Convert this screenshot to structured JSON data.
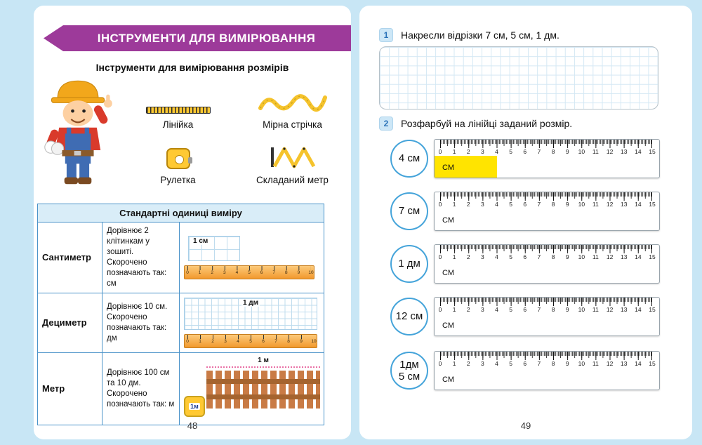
{
  "colors": {
    "background": "#c8e6f5",
    "banner": "#9d3a9a",
    "table_border": "#4a93c9",
    "highlight": "#ffe400",
    "circle_border": "#45a4da"
  },
  "left_page": {
    "banner_title": "ІНСТРУМЕНТИ ДЛЯ ВИМІРЮВАННЯ",
    "subtitle": "Інструменти для вимірювання розмірів",
    "tools": [
      {
        "label": "Лінійка",
        "icon": "ruler-icon"
      },
      {
        "label": "Мірна стрічка",
        "icon": "measuring-tape-icon"
      },
      {
        "label": "Рулетка",
        "icon": "tape-measure-icon"
      },
      {
        "label": "Складаний метр",
        "icon": "folding-meter-icon"
      }
    ],
    "table": {
      "header": "Стандартні одиниці виміру",
      "mini_ruler_numbers": [
        "0",
        "1",
        "2",
        "3",
        "4",
        "5",
        "6",
        "7",
        "8",
        "9",
        "10"
      ],
      "rows": [
        {
          "unit": "Сантиметр",
          "description": "Дорівнює 2 клітинкам у зошиті. Скорочено позначають так: см",
          "image_label": "1 см"
        },
        {
          "unit": "Дециметр",
          "description": "Дорівнює 10 см. Скорочено позначають так: дм",
          "image_label": "1 дм"
        },
        {
          "unit": "Метр",
          "description": "Дорівнює 100 см та 10 дм. Скорочено позначають так: м",
          "image_label": "1 м",
          "tape_label": "1м"
        }
      ]
    },
    "page_number": "48"
  },
  "right_page": {
    "tasks": [
      {
        "number": "1",
        "text": "Накресли відрізки 7 см, 5 см, 1 дм."
      },
      {
        "number": "2",
        "text": "Розфарбуй на лінійці заданий розмір."
      }
    ],
    "ruler": {
      "numbers": [
        "0",
        "1",
        "2",
        "3",
        "4",
        "5",
        "6",
        "7",
        "8",
        "9",
        "10",
        "11",
        "12",
        "13",
        "14",
        "15"
      ],
      "unit_label": "СМ"
    },
    "rows": [
      {
        "label_line1": "4 см",
        "label_line2": "",
        "highlight_cm": 4
      },
      {
        "label_line1": "7 см",
        "label_line2": "",
        "highlight_cm": 0
      },
      {
        "label_line1": "1 дм",
        "label_line2": "",
        "highlight_cm": 0
      },
      {
        "label_line1": "12 см",
        "label_line2": "",
        "highlight_cm": 0
      },
      {
        "label_line1": "1дм",
        "label_line2": "5 см",
        "highlight_cm": 0
      }
    ],
    "page_number": "49"
  }
}
